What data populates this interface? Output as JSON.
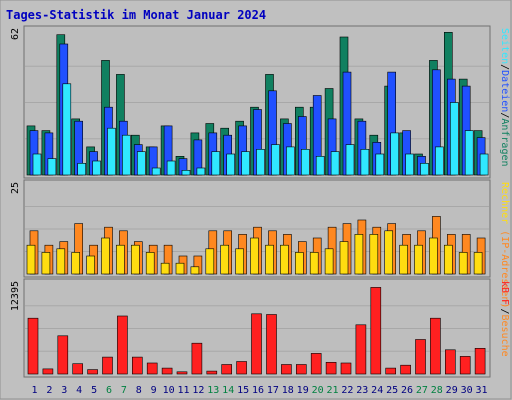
{
  "chart_data": {
    "type": "bar",
    "title": "Tages-Statistik im Monat Januar 2024",
    "categories": [
      "1",
      "2",
      "3",
      "4",
      "5",
      "6",
      "7",
      "8",
      "9",
      "10",
      "11",
      "12",
      "13",
      "14",
      "15",
      "16",
      "17",
      "18",
      "19",
      "20",
      "21",
      "22",
      "23",
      "24",
      "25",
      "26",
      "27",
      "28",
      "29",
      "30",
      "31"
    ],
    "weekend_categories": [
      "6",
      "7",
      "13",
      "14",
      "20",
      "21",
      "27",
      "28"
    ],
    "colors": {
      "background": "#c0c0c0",
      "plot": "#bebebe",
      "title": "#0000c0",
      "label_default": "#000080",
      "label_weekend": "#008040",
      "anfragen": "#108060",
      "dateien": "#2050ff",
      "seiten": "#30e8ff",
      "besuche": "#ff8820",
      "rechner": "#ffdd10",
      "kb": "#ff2020"
    },
    "panels": [
      {
        "id": "top",
        "ymax_label": "62",
        "ylim": [
          0,
          62
        ],
        "right_label_parts": [
          {
            "text": "Seiten",
            "color": "#30e8ff"
          },
          {
            "text": "/",
            "color": "#000000"
          },
          {
            "text": "Dateien",
            "color": "#2050ff"
          },
          {
            "text": "/",
            "color": "#000000"
          },
          {
            "text": "Anfragen",
            "color": "#108060"
          }
        ],
        "series": [
          {
            "name": "Anfragen",
            "color": "#108060",
            "values": [
              21,
              19,
              60,
              24,
              12,
              49,
              43,
              17,
              12,
              21,
              8,
              18,
              22,
              20,
              23,
              29,
              43,
              24,
              29,
              29,
              37,
              59,
              24,
              17,
              38,
              18,
              9,
              49,
              61,
              41,
              19
            ]
          },
          {
            "name": "Dateien",
            "color": "#2050ff",
            "values": [
              19,
              18,
              56,
              23,
              10,
              29,
              23,
              13,
              12,
              21,
              7,
              15,
              18,
              17,
              21,
              28,
              36,
              22,
              25,
              34,
              24,
              44,
              23,
              14,
              44,
              19,
              8,
              45,
              41,
              38,
              16
            ]
          },
          {
            "name": "Seiten",
            "color": "#30e8ff",
            "values": [
              9,
              7,
              39,
              5,
              6,
              20,
              17,
              10,
              3,
              6,
              2,
              3,
              10,
              9,
              10,
              11,
              13,
              12,
              11,
              8,
              10,
              13,
              11,
              9,
              18,
              9,
              5,
              12,
              31,
              19,
              9
            ]
          }
        ]
      },
      {
        "id": "mid",
        "ymax_label": "25",
        "ylim": [
          0,
          25
        ],
        "right_label_parts": [
          {
            "text": "Rechner",
            "color": "#ffdd10"
          },
          {
            "text": " (IP-Adressen)",
            "color": "#ff8820"
          },
          {
            "text": "/",
            "color": "#000000"
          },
          {
            "text": "Besuche",
            "color": "#ff8820"
          }
        ],
        "series": [
          {
            "name": "Besuche",
            "color": "#ff8820",
            "values": [
              12,
              8,
              9,
              14,
              8,
              13,
              12,
              9,
              8,
              8,
              5,
              5,
              12,
              12,
              11,
              13,
              12,
              11,
              9,
              10,
              13,
              14,
              15,
              13,
              14,
              11,
              12,
              16,
              11,
              11,
              10
            ]
          },
          {
            "name": "Rechner",
            "color": "#ffdd10",
            "values": [
              8,
              6,
              7,
              6,
              5,
              10,
              8,
              8,
              6,
              3,
              3,
              2,
              7,
              8,
              7,
              10,
              8,
              8,
              6,
              6,
              7,
              9,
              11,
              11,
              12,
              8,
              8,
              10,
              8,
              6,
              6
            ]
          }
        ]
      },
      {
        "id": "bot",
        "ymax_label": "12395",
        "ylim": [
          0,
          12395
        ],
        "right_label_parts": [
          {
            "text": "kB F",
            "color": "#ff2020"
          }
        ],
        "series": [
          {
            "name": "kB F",
            "color": "#ff2020",
            "values": [
              7600,
              700,
              5200,
              1400,
              600,
              2300,
              7900,
              2300,
              1500,
              800,
              300,
              4200,
              400,
              1300,
              1700,
              8200,
              8100,
              1300,
              1300,
              2800,
              1600,
              1500,
              6700,
              11800,
              800,
              1200,
              4700,
              7600,
              3300,
              2400,
              3500
            ]
          }
        ]
      }
    ]
  }
}
